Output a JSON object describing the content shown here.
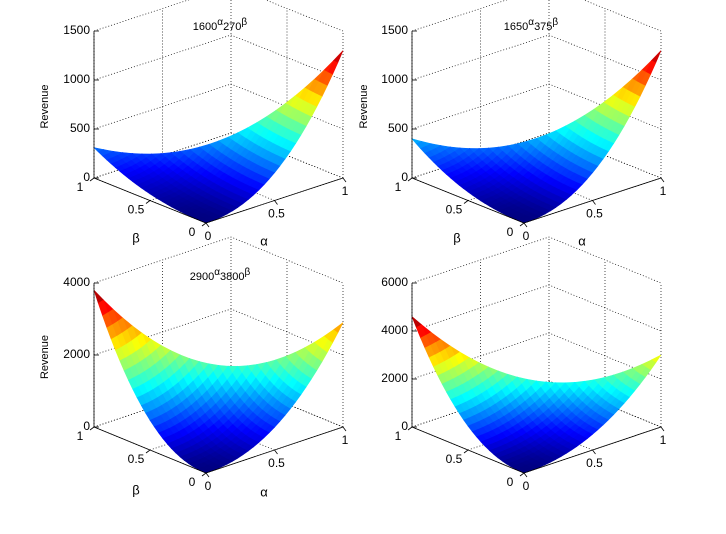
{
  "chart_data": [
    {
      "type": "surface",
      "title": "1600",
      "title_sup1": "α",
      "title_mid": "270",
      "title_sup2": "β",
      "xlabel": "α",
      "ylabel": "β",
      "zlabel": "Revenue",
      "xlim": [
        0,
        1
      ],
      "ylim": [
        0,
        1
      ],
      "zlim": [
        0,
        1500
      ],
      "xticks": [
        "0",
        "0.5",
        "1"
      ],
      "yticks": [
        "0",
        "0.5",
        "1"
      ],
      "zticks": [
        "0",
        "500",
        "1000",
        "1500"
      ],
      "base_a": 1600,
      "base_b": 270,
      "corner_values": {
        "a0_b0": 0,
        "a1_b0": 1300,
        "a0_b1": 310
      },
      "grid": true,
      "colormap": "jet"
    },
    {
      "type": "surface",
      "title": "1650",
      "title_sup1": "α",
      "title_mid": "375",
      "title_sup2": "β",
      "xlabel": "α",
      "ylabel": "β",
      "zlabel": "Revenue",
      "xlim": [
        0,
        1
      ],
      "ylim": [
        0,
        1
      ],
      "zlim": [
        0,
        1500
      ],
      "xticks": [
        "0",
        "0.5",
        "1"
      ],
      "yticks": [
        "0",
        "0.5",
        "1"
      ],
      "zticks": [
        "0",
        "500",
        "1000",
        "1500"
      ],
      "base_a": 1650,
      "base_b": 375,
      "corner_values": {
        "a0_b0": 0,
        "a1_b0": 1300,
        "a0_b1": 400
      },
      "grid": true,
      "colormap": "jet"
    },
    {
      "type": "surface",
      "title": "2900",
      "title_sup1": "α",
      "title_mid": "3800",
      "title_sup2": "β",
      "xlabel": "α",
      "ylabel": "β",
      "zlabel": "Revenue",
      "xlim": [
        0,
        1
      ],
      "ylim": [
        0,
        1
      ],
      "zlim": [
        0,
        4000
      ],
      "xticks": [
        "0",
        "0.5",
        "1"
      ],
      "yticks": [
        "0",
        "0.5",
        "1"
      ],
      "zticks": [
        "0",
        "2000",
        "4000"
      ],
      "base_a": 2900,
      "base_b": 3800,
      "corner_values": {
        "a0_b0": 0,
        "a1_b0": 2900,
        "a0_b1": 3800
      },
      "grid": true,
      "colormap": "jet"
    },
    {
      "type": "surface",
      "title": "",
      "title_sup1": "",
      "title_mid": "",
      "title_sup2": "",
      "xlabel": "",
      "ylabel": "",
      "zlabel": "",
      "xlim": [
        0,
        1
      ],
      "ylim": [
        0,
        1
      ],
      "zlim": [
        0,
        6000
      ],
      "xticks": [
        "0",
        "0.5",
        "1"
      ],
      "yticks": [
        "0",
        "0.5",
        "1"
      ],
      "zticks": [
        "0",
        "2000",
        "4000",
        "6000"
      ],
      "base_a": 3000,
      "base_b": 4600,
      "corner_values": {
        "a0_b0": 0,
        "a1_b0": 3000,
        "a0_b1": 4600
      },
      "grid": true,
      "colormap": "jet"
    }
  ]
}
